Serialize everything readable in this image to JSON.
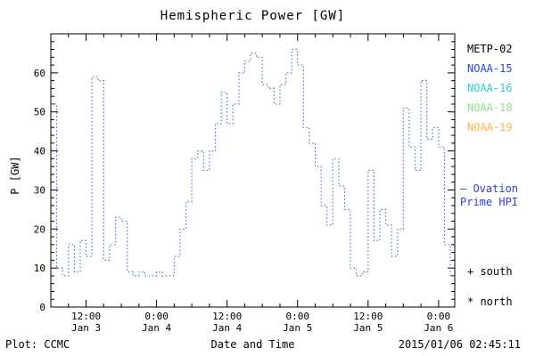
{
  "title": "Hemispheric Power [GW]",
  "ylabel": "P [GW]",
  "xlabel": "Date and Time",
  "footer": {
    "left": "Plot: CCMC",
    "right": "2015/01/06 02:45:11"
  },
  "legend": {
    "satellites": [
      {
        "label": "METP-02",
        "color": "#000000"
      },
      {
        "label": "NOAA-15",
        "color": "#2b44d8"
      },
      {
        "label": "NOAA-16",
        "color": "#2ecfd4"
      },
      {
        "label": "NOAA-18",
        "color": "#8fe08f"
      },
      {
        "label": "NOAA-19",
        "color": "#ffb347"
      }
    ],
    "ovation": {
      "line1": "— Ovation",
      "line2": "Prime HPI",
      "color": "#2b44d8"
    },
    "south": "+ south",
    "north": "* north"
  },
  "chart_data": {
    "type": "line",
    "title": "Hemispheric Power [GW]",
    "xlabel": "Date and Time",
    "ylabel": "P [GW]",
    "ylim": [
      0,
      70
    ],
    "y_ticks": [
      0,
      10,
      20,
      30,
      40,
      50,
      60
    ],
    "x_range_hours": [
      6,
      74.75
    ],
    "x_epoch": "hours since 2015-01-03 00:00",
    "x_ticks": [
      {
        "hour": 12,
        "time": "12:00",
        "date": "Jan 3"
      },
      {
        "hour": 24,
        "time": "0:00",
        "date": "Jan 4"
      },
      {
        "hour": 36,
        "time": "12:00",
        "date": "Jan 4"
      },
      {
        "hour": 48,
        "time": "0:00",
        "date": "Jan 5"
      },
      {
        "hour": 60,
        "time": "12:00",
        "date": "Jan 5"
      },
      {
        "hour": 72,
        "time": "0:00",
        "date": "Jan 6"
      }
    ],
    "grid": false,
    "legend_position": "right-outside",
    "series": [
      {
        "name": "NOAA-15 Ovation Prime HPI",
        "color": "#4a74d4",
        "style": "dotted-step",
        "start_hour": 6,
        "step_hours": 1,
        "values": [
          52,
          10,
          8,
          16,
          9,
          17,
          13,
          59,
          58,
          12,
          16,
          23,
          22,
          9,
          8,
          9,
          8,
          8,
          9,
          8,
          8,
          13,
          20,
          27,
          38,
          40,
          35,
          40,
          47,
          55,
          47,
          52,
          60,
          63,
          65,
          64,
          57,
          56,
          52,
          57,
          60,
          66,
          62,
          46,
          42,
          36,
          26,
          21,
          38,
          31,
          25,
          10,
          8,
          9,
          35,
          17,
          25,
          21,
          13,
          20,
          51,
          41,
          35,
          58,
          43,
          46,
          41,
          16,
          8
        ]
      }
    ]
  }
}
